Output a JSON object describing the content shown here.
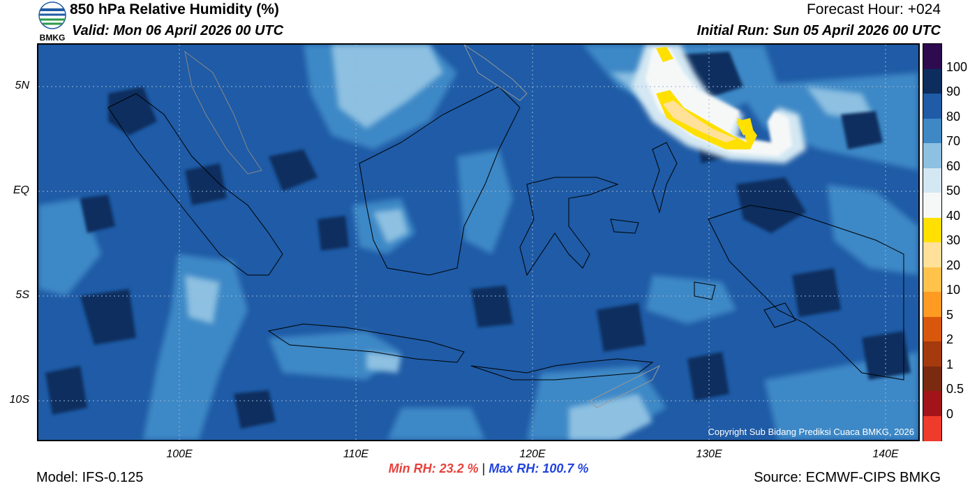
{
  "header": {
    "title": "850 hPa Relative Humidity (%)",
    "valid": "Valid: Mon 06 April 2026 00 UTC",
    "forecast_hour": "Forecast Hour: +024",
    "initial_run": "Initial Run: Sun 05 April 2026 00 UTC",
    "logo_text": "BMKG"
  },
  "map": {
    "lat_labels": [
      "5N",
      "EQ",
      "5S",
      "10S"
    ],
    "lon_labels": [
      "100E",
      "110E",
      "120E",
      "130E",
      "140E"
    ],
    "copyright": "Copyright Sub Bidang Prediksi Cuaca BMKG, 2026"
  },
  "colorbar": {
    "labels": [
      "100",
      "90",
      "80",
      "70",
      "60",
      "50",
      "40",
      "30",
      "20",
      "10",
      "5",
      "2",
      "1",
      "0.5",
      "0"
    ],
    "colors": [
      "#2e0a4e",
      "#0c2d5e",
      "#1f5ba6",
      "#3e88c6",
      "#8dc0e1",
      "#d4e8f3",
      "#f6f8f8",
      "#ffe000",
      "#ffe19a",
      "#ffc24a",
      "#ff9a22",
      "#d8570d",
      "#a43a0e",
      "#7a2a0f",
      "#a3131a",
      "#ef3b2c"
    ]
  },
  "stats": {
    "min_rh": "Min RH:  23.2 %",
    "separator": " | ",
    "max_rh": "Max RH: 100.7 %"
  },
  "footer": {
    "model": "Model: IFS-0.125",
    "source": "Source: ECMWF-CIPS BMKG"
  }
}
